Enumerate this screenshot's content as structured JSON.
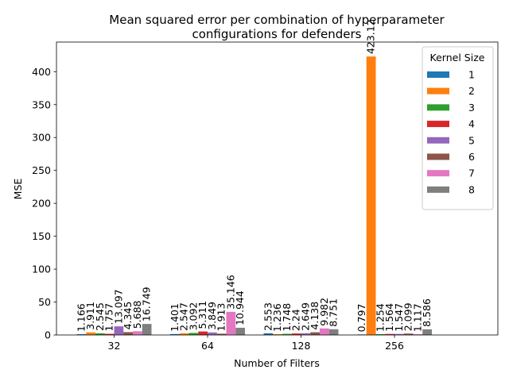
{
  "chart_data": {
    "type": "bar",
    "title": "Mean squared error per combination of hyperparameter configurations for defenders",
    "title_lines": [
      "Mean squared error per combination of hyperparameter",
      "configurations for defenders"
    ],
    "xlabel": "Number of Filters",
    "ylabel": "MSE",
    "categories": [
      "32",
      "64",
      "128",
      "256"
    ],
    "ylim": [
      0,
      445
    ],
    "yticks": [
      0,
      50,
      100,
      150,
      200,
      250,
      300,
      350,
      400
    ],
    "grid": false,
    "legend": {
      "title": "Kernel Size",
      "placement": "top-right"
    },
    "series": [
      {
        "name": "1",
        "color": "#1f77b4",
        "values": [
          1.166,
          1.401,
          2.553,
          0.797
        ],
        "labels": [
          "1.166",
          "1.401",
          "2.553",
          "0.797"
        ]
      },
      {
        "name": "2",
        "color": "#ff7f0e",
        "values": [
          3.911,
          2.547,
          1.236,
          423.12
        ],
        "labels": [
          "3.911",
          "2.547",
          "1.236",
          "423.12"
        ]
      },
      {
        "name": "3",
        "color": "#2ca02c",
        "values": [
          2.545,
          3.092,
          1.748,
          1.254
        ],
        "labels": [
          "2.545",
          "3.092",
          "1.748",
          "1.254"
        ]
      },
      {
        "name": "4",
        "color": "#d62728",
        "values": [
          1.757,
          5.311,
          2.24,
          1.564
        ],
        "labels": [
          "1.757",
          "5.311",
          "2.24",
          "1.564"
        ]
      },
      {
        "name": "5",
        "color": "#9467bd",
        "values": [
          13.097,
          3.849,
          2.649,
          1.547
        ],
        "labels": [
          "13.097",
          "3.849",
          "2.649",
          "1.547"
        ]
      },
      {
        "name": "6",
        "color": "#8c564b",
        "values": [
          4.345,
          1.913,
          4.138,
          2.099
        ],
        "labels": [
          "4.345",
          "1.913",
          "4.138",
          "2.099"
        ]
      },
      {
        "name": "7",
        "color": "#e377c2",
        "values": [
          5.688,
          35.146,
          9.982,
          1.117
        ],
        "labels": [
          "5.688",
          "35.146",
          "9.982",
          "1.117"
        ]
      },
      {
        "name": "8",
        "color": "#7f7f7f",
        "values": [
          16.749,
          10.944,
          8.751,
          8.586
        ],
        "labels": [
          "16.749",
          "10.944",
          "8.751",
          "8.586"
        ]
      }
    ]
  }
}
